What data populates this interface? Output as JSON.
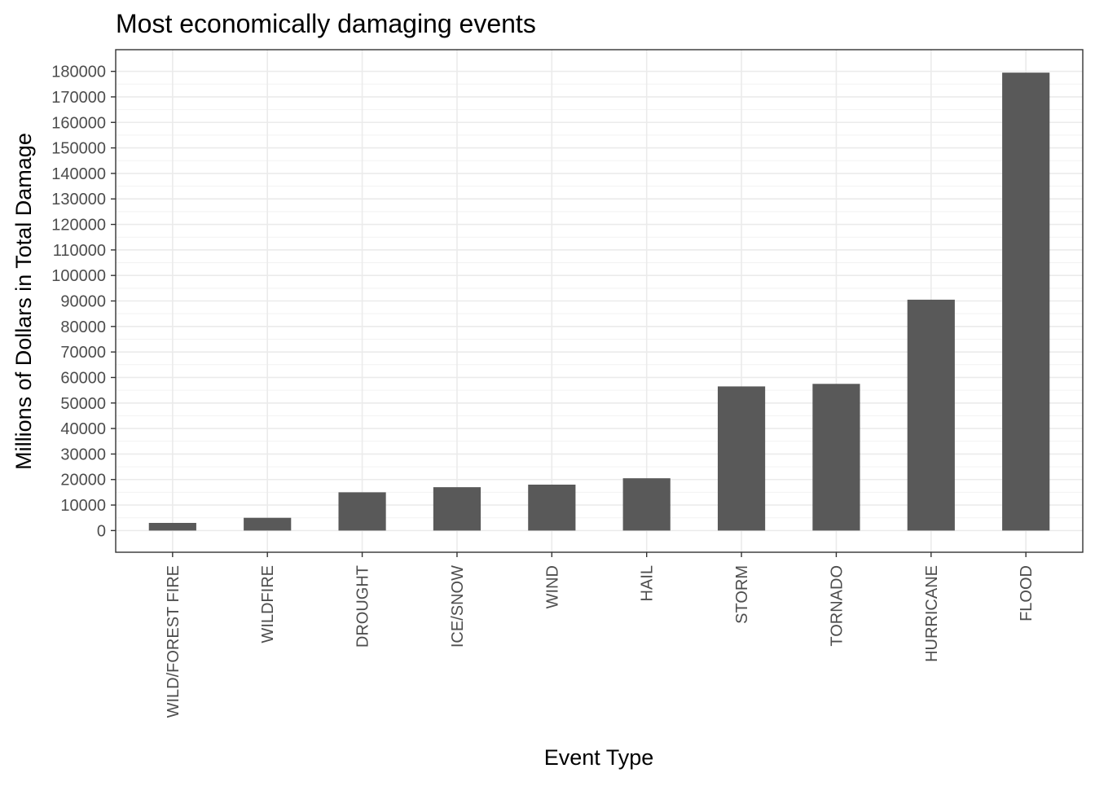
{
  "chart_data": {
    "type": "bar",
    "title": "Most economically damaging events",
    "xlabel": "Event Type",
    "ylabel": "Millions of Dollars in Total Damage",
    "categories": [
      "WILD/FOREST FIRE",
      "WILDFIRE",
      "DROUGHT",
      "ICE/SNOW",
      "WIND",
      "HAIL",
      "STORM",
      "TORNADO",
      "HURRICANE",
      "FLOOD"
    ],
    "values": [
      3000,
      5000,
      15000,
      17000,
      18000,
      20500,
      56500,
      57500,
      90500,
      179500
    ],
    "ylim": [
      -8500,
      188500
    ],
    "yticks": [
      0,
      10000,
      20000,
      30000,
      40000,
      50000,
      60000,
      70000,
      80000,
      90000,
      100000,
      110000,
      120000,
      130000,
      140000,
      150000,
      160000,
      170000,
      180000
    ],
    "ytick_labels": [
      "0",
      "10000",
      "20000",
      "30000",
      "40000",
      "50000",
      "60000",
      "70000",
      "80000",
      "90000",
      "100000",
      "110000",
      "120000",
      "130000",
      "140000",
      "150000",
      "160000",
      "170000",
      "180000"
    ],
    "grid": true,
    "legend": "none",
    "colors": {
      "bar": "#595959",
      "grid_major": "#ebebeb",
      "grid_minor": "#f2f2f2",
      "panel_border": "#333333",
      "tick_text": "#4d4d4d"
    }
  }
}
